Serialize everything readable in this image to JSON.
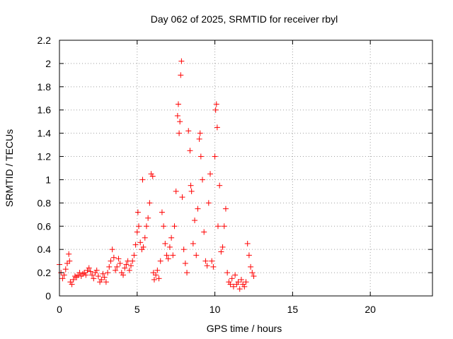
{
  "chart_data": {
    "type": "scatter",
    "title": "Day 062 of 2025, SRMTID for receiver rbyl",
    "xlabel": "GPS time / hours",
    "ylabel": "SRMTID / TECUs",
    "xlim": [
      0,
      24
    ],
    "ylim": [
      0,
      2.2
    ],
    "xticks": [
      0,
      5,
      10,
      15,
      20
    ],
    "yticks": [
      0,
      0.2,
      0.4,
      0.6,
      0.8,
      1,
      1.2,
      1.4,
      1.6,
      1.8,
      2,
      2.2
    ],
    "xtick_labels": [
      "0",
      "5",
      "10",
      "15",
      "20"
    ],
    "ytick_labels": [
      "0",
      "0.2",
      "0.4",
      "0.6",
      "0.8",
      "1",
      "1.2",
      "1.4",
      "1.6",
      "1.8",
      "2",
      "2.2"
    ],
    "grid": true,
    "marker": "plus",
    "color": "#ff0000",
    "series": [
      {
        "name": "SRMTID",
        "x": [
          0.0,
          0.1,
          0.2,
          0.3,
          0.4,
          0.5,
          0.6,
          0.65,
          0.7,
          0.8,
          0.9,
          1.0,
          1.1,
          1.2,
          1.3,
          1.4,
          1.5,
          1.6,
          1.7,
          1.8,
          1.9,
          2.0,
          2.1,
          2.2,
          2.3,
          2.4,
          2.5,
          2.6,
          2.7,
          2.8,
          2.9,
          3.0,
          3.1,
          3.2,
          3.3,
          3.4,
          3.5,
          3.6,
          3.7,
          3.8,
          3.9,
          4.0,
          4.1,
          4.2,
          4.3,
          4.4,
          4.5,
          4.6,
          4.7,
          4.8,
          4.9,
          5.0,
          5.05,
          5.1,
          5.2,
          5.3,
          5.35,
          5.4,
          5.5,
          5.6,
          5.7,
          5.8,
          5.9,
          6.0,
          6.05,
          6.1,
          6.2,
          6.3,
          6.4,
          6.5,
          6.6,
          6.7,
          6.8,
          6.9,
          7.0,
          7.1,
          7.2,
          7.3,
          7.4,
          7.5,
          7.6,
          7.65,
          7.7,
          7.75,
          7.8,
          7.85,
          7.9,
          8.0,
          8.1,
          8.2,
          8.3,
          8.4,
          8.45,
          8.5,
          8.6,
          8.7,
          8.8,
          8.9,
          9.0,
          9.05,
          9.1,
          9.2,
          9.3,
          9.4,
          9.5,
          9.6,
          9.7,
          9.8,
          9.9,
          10.0,
          10.05,
          10.1,
          10.15,
          10.2,
          10.3,
          10.4,
          10.5,
          10.6,
          10.7,
          10.8,
          10.9,
          11.0,
          11.1,
          11.2,
          11.3,
          11.4,
          11.5,
          11.6,
          11.7,
          11.8,
          11.9,
          12.0,
          12.1,
          12.2,
          12.3,
          12.4,
          12.5
        ],
        "y": [
          0.27,
          0.2,
          0.15,
          0.18,
          0.23,
          0.28,
          0.36,
          0.3,
          0.12,
          0.1,
          0.14,
          0.17,
          0.16,
          0.18,
          0.2,
          0.17,
          0.19,
          0.2,
          0.18,
          0.22,
          0.24,
          0.21,
          0.18,
          0.15,
          0.2,
          0.22,
          0.17,
          0.12,
          0.14,
          0.19,
          0.16,
          0.12,
          0.2,
          0.25,
          0.3,
          0.4,
          0.33,
          0.22,
          0.25,
          0.32,
          0.28,
          0.2,
          0.18,
          0.24,
          0.27,
          0.3,
          0.22,
          0.26,
          0.3,
          0.35,
          0.44,
          0.55,
          0.72,
          0.6,
          0.46,
          0.4,
          1.0,
          0.42,
          0.5,
          0.6,
          0.67,
          0.8,
          1.05,
          1.03,
          0.2,
          0.14,
          0.18,
          0.22,
          0.15,
          0.3,
          0.72,
          0.6,
          0.45,
          0.35,
          0.32,
          0.42,
          0.5,
          0.35,
          0.6,
          0.9,
          1.55,
          1.65,
          1.4,
          1.5,
          1.9,
          2.02,
          0.85,
          0.4,
          0.28,
          0.2,
          1.42,
          1.25,
          0.95,
          0.9,
          0.45,
          0.65,
          0.35,
          0.75,
          1.35,
          1.4,
          1.2,
          1.0,
          0.55,
          0.3,
          0.26,
          0.8,
          1.05,
          0.3,
          0.25,
          1.2,
          1.6,
          1.65,
          1.45,
          0.6,
          0.95,
          0.38,
          0.42,
          0.6,
          0.75,
          0.2,
          0.12,
          0.1,
          0.15,
          0.08,
          0.18,
          0.1,
          0.12,
          0.06,
          0.14,
          0.1,
          0.08,
          0.12,
          0.45,
          0.35,
          0.25,
          0.2,
          0.17
        ]
      }
    ]
  }
}
